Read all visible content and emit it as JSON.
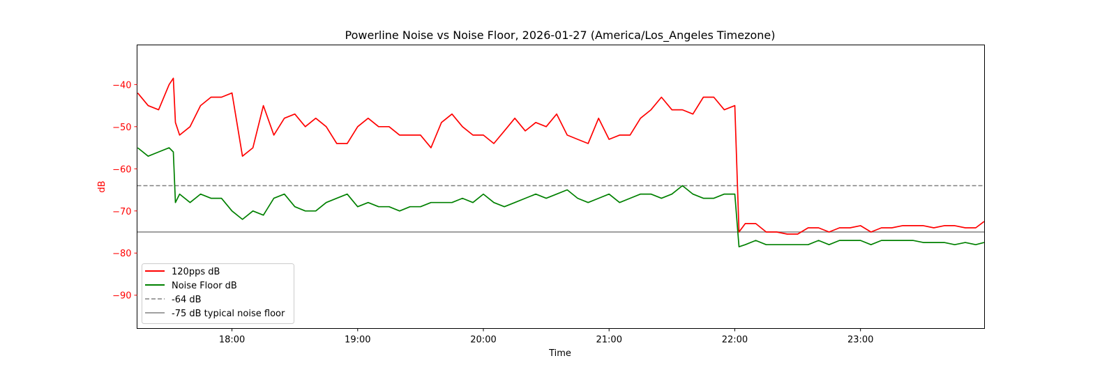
{
  "chart_data": {
    "type": "line",
    "title": "Powerline Noise vs Noise Floor, 2026-01-27 (America/Los_Angeles Timezone)",
    "xlabel": "Time",
    "ylabel": "dB",
    "xlim": [
      "17:14.7",
      "23:59.2"
    ],
    "ylim": [
      -97.9,
      -30.6
    ],
    "xticks": [
      "18:00",
      "19:00",
      "20:00",
      "21:00",
      "22:00",
      "23:00"
    ],
    "yticks": [
      -40,
      -50,
      -60,
      -70,
      -80,
      -90
    ],
    "grid": false,
    "legend_position": "lower-left",
    "colors": {
      "red": "#ff0000",
      "green": "#008000",
      "ref": "#808080",
      "ylabel": "#ff0000"
    },
    "x": [
      "17:15",
      "17:20",
      "17:25",
      "17:30",
      "17:32",
      "17:33",
      "17:35",
      "17:40",
      "17:45",
      "17:50",
      "17:55",
      "18:00",
      "18:05",
      "18:10",
      "18:15",
      "18:20",
      "18:25",
      "18:30",
      "18:35",
      "18:40",
      "18:45",
      "18:50",
      "18:55",
      "19:00",
      "19:05",
      "19:10",
      "19:15",
      "19:20",
      "19:25",
      "19:30",
      "19:35",
      "19:40",
      "19:45",
      "19:50",
      "19:55",
      "20:00",
      "20:05",
      "20:10",
      "20:15",
      "20:20",
      "20:25",
      "20:30",
      "20:35",
      "20:40",
      "20:45",
      "20:50",
      "20:55",
      "21:00",
      "21:05",
      "21:10",
      "21:15",
      "21:20",
      "21:25",
      "21:30",
      "21:35",
      "21:40",
      "21:45",
      "21:50",
      "21:55",
      "22:00",
      "22:02",
      "22:05",
      "22:10",
      "22:15",
      "22:20",
      "22:25",
      "22:30",
      "22:35",
      "22:40",
      "22:45",
      "22:50",
      "22:55",
      "23:00",
      "23:05",
      "23:10",
      "23:15",
      "23:20",
      "23:25",
      "23:30",
      "23:35",
      "23:40",
      "23:45",
      "23:50",
      "23:55",
      "23:59"
    ],
    "series": [
      {
        "name": "120pps dB",
        "color": "#ff0000",
        "style": "solid",
        "values": [
          -42,
          -45,
          -46,
          -40,
          -38.5,
          -49,
          -52,
          -50,
          -45,
          -43,
          -43,
          -42,
          -57,
          -55,
          -45,
          -52,
          -48,
          -47,
          -50,
          -48,
          -50,
          -54,
          -54,
          -50,
          -48,
          -50,
          -50,
          -52,
          -52,
          -52,
          -55,
          -49,
          -47,
          -50,
          -52,
          -52,
          -54,
          -51,
          -48,
          -51,
          -49,
          -50,
          -47,
          -52,
          -53,
          -54,
          -48,
          -53,
          -52,
          -52,
          -48,
          -46,
          -43,
          -46,
          -46,
          -47,
          -43,
          -43,
          -46,
          -45,
          -75,
          -73,
          -73,
          -75,
          -75,
          -75.5,
          -75.5,
          -74,
          -74,
          -75,
          -74,
          -74,
          -73.5,
          -75,
          -74,
          -74,
          -73.5,
          -73.5,
          -73.5,
          -74,
          -73.5,
          -73.5,
          -74,
          -74,
          -72.5
        ]
      },
      {
        "name": "Noise Floor dB",
        "color": "#008000",
        "style": "solid",
        "values": [
          -55,
          -57,
          -56,
          -55,
          -56,
          -68,
          -66,
          -68,
          -66,
          -67,
          -67,
          -70,
          -72,
          -70,
          -71,
          -67,
          -66,
          -69,
          -70,
          -70,
          -68,
          -67,
          -66,
          -69,
          -68,
          -69,
          -69,
          -70,
          -69,
          -69,
          -68,
          -68,
          -68,
          -67,
          -68,
          -66,
          -68,
          -69,
          -68,
          -67,
          -66,
          -67,
          -66,
          -65,
          -67,
          -68,
          -67,
          -66,
          -68,
          -67,
          -66,
          -66,
          -67,
          -66,
          -64,
          -66,
          -67,
          -67,
          -66,
          -66,
          -78.5,
          -78,
          -77,
          -78,
          -78,
          -78,
          -78,
          -78,
          -77,
          -78,
          -77,
          -77,
          -77,
          -78,
          -77,
          -77,
          -77,
          -77,
          -77.5,
          -77.5,
          -77.5,
          -78,
          -77.5,
          -78,
          -77.5
        ]
      },
      {
        "name": "-64 dB",
        "color": "#808080",
        "style": "dashed",
        "constant": -64
      },
      {
        "name": "-75 dB typical noise floor",
        "color": "#808080",
        "style": "solid",
        "constant": -75
      }
    ]
  }
}
